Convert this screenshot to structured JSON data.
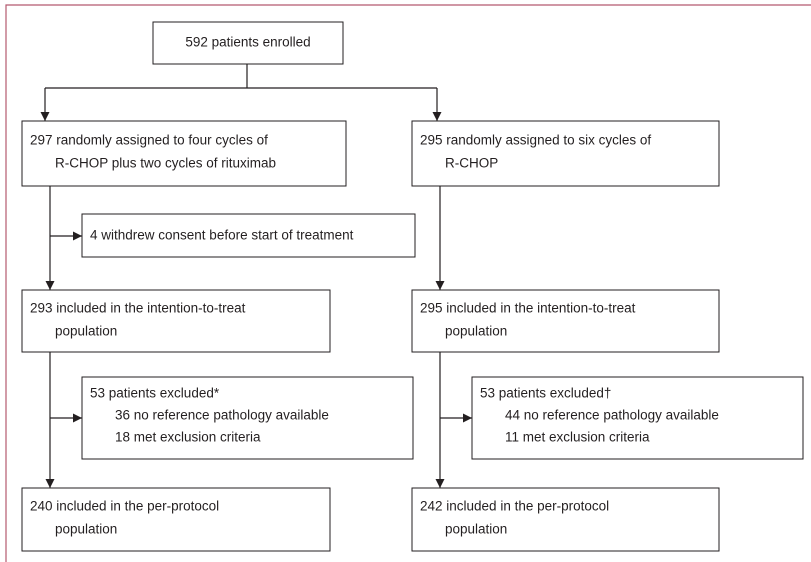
{
  "nodes": [
    {
      "lines": [
        "592 patients enrolled"
      ]
    },
    {
      "lines": [
        "297 randomly assigned to four cycles of",
        "R-CHOP plus two cycles of rituximab"
      ]
    },
    {
      "lines": [
        "295 randomly assigned to six cycles of",
        "R-CHOP"
      ]
    },
    {
      "lines": [
        "4 withdrew consent before start of treatment"
      ]
    },
    {
      "lines": [
        "293 included in the intention-to-treat",
        "population"
      ]
    },
    {
      "lines": [
        "295 included in the intention-to-treat",
        "population"
      ]
    },
    {
      "lines": [
        "53 patients excluded*",
        "36 no reference pathology available",
        "18 met exclusion criteria"
      ]
    },
    {
      "lines": [
        "53 patients excluded†",
        "44 no reference pathology available",
        "11 met exclusion criteria"
      ]
    },
    {
      "lines": [
        "240 included in the per-protocol",
        "population"
      ]
    },
    {
      "lines": [
        "242 included in the per-protocol",
        "population"
      ]
    }
  ]
}
